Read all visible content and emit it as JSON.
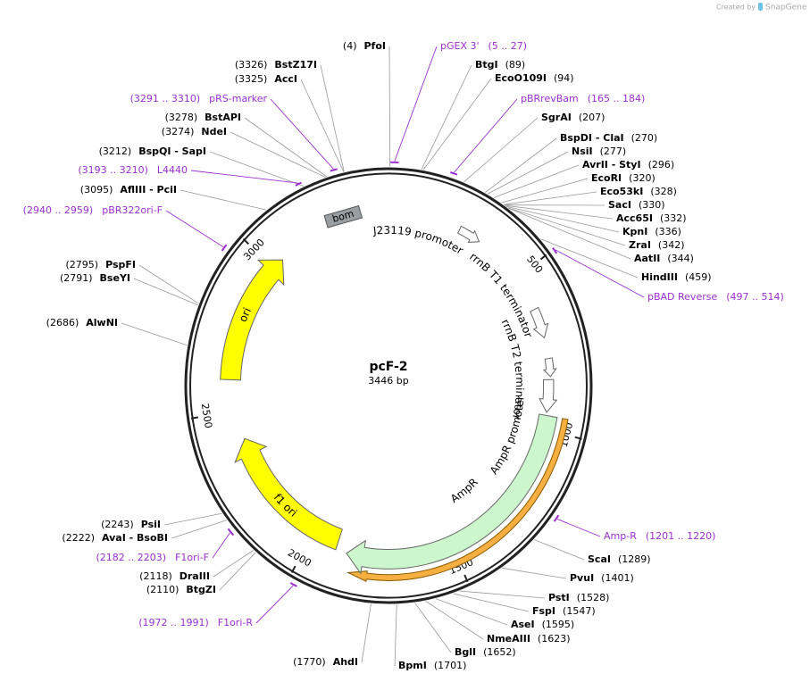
{
  "credit": {
    "prefix": "Created by",
    "brand": "SnapGene"
  },
  "map": {
    "name": "pcF-2",
    "length": 3446,
    "length_label": "3446 bp",
    "ticks": [
      500,
      1000,
      1500,
      2000,
      2500,
      3000
    ]
  },
  "enzymes": [
    {
      "name": "PfoI",
      "site": 4,
      "label": "(4)"
    },
    {
      "name": "BtgI",
      "site": 89,
      "label": "(89)"
    },
    {
      "name": "EcoO109I",
      "site": 94,
      "label": "(94)"
    },
    {
      "name": "SgrAI",
      "site": 207,
      "label": "(207)"
    },
    {
      "name": "BspDI - ClaI",
      "site": 270,
      "label": "(270)"
    },
    {
      "name": "NsiI",
      "site": 277,
      "label": "(277)"
    },
    {
      "name": "AvrII - StyI",
      "site": 296,
      "label": "(296)"
    },
    {
      "name": "EcoRI",
      "site": 320,
      "label": "(320)"
    },
    {
      "name": "Eco53kI",
      "site": 328,
      "label": "(328)"
    },
    {
      "name": "SacI",
      "site": 330,
      "label": "(330)"
    },
    {
      "name": "Acc65I",
      "site": 332,
      "label": "(332)"
    },
    {
      "name": "KpnI",
      "site": 336,
      "label": "(336)"
    },
    {
      "name": "ZraI",
      "site": 342,
      "label": "(342)"
    },
    {
      "name": "AatII",
      "site": 344,
      "label": "(344)"
    },
    {
      "name": "HindIII",
      "site": 459,
      "label": "(459)"
    },
    {
      "name": "ScaI",
      "site": 1289,
      "label": "(1289)"
    },
    {
      "name": "PvuI",
      "site": 1401,
      "label": "(1401)"
    },
    {
      "name": "PstI",
      "site": 1528,
      "label": "(1528)"
    },
    {
      "name": "FspI",
      "site": 1547,
      "label": "(1547)"
    },
    {
      "name": "AseI",
      "site": 1595,
      "label": "(1595)"
    },
    {
      "name": "NmeAIII",
      "site": 1623,
      "label": "(1623)"
    },
    {
      "name": "BglI",
      "site": 1652,
      "label": "(1652)"
    },
    {
      "name": "BpmI",
      "site": 1701,
      "label": "(1701)"
    },
    {
      "name": "AhdI",
      "site": 1770,
      "label": "(1770)"
    },
    {
      "name": "BtgZI",
      "site": 2110,
      "label": "(2110)"
    },
    {
      "name": "DraIII",
      "site": 2118,
      "label": "(2118)"
    },
    {
      "name": "AvaI - BsoBI",
      "site": 2222,
      "label": "(2222)"
    },
    {
      "name": "PsiI",
      "site": 2243,
      "label": "(2243)"
    },
    {
      "name": "AlwNI",
      "site": 2686,
      "label": "(2686)"
    },
    {
      "name": "BseYI",
      "site": 2791,
      "label": "(2791)"
    },
    {
      "name": "PspFI",
      "site": 2795,
      "label": "(2795)"
    },
    {
      "name": "AflIII - PciI",
      "site": 3095,
      "label": "(3095)"
    },
    {
      "name": "BspQI - SapI",
      "site": 3212,
      "label": "(3212)"
    },
    {
      "name": "NdeI",
      "site": 3274,
      "label": "(3274)"
    },
    {
      "name": "BstAPI",
      "site": 3278,
      "label": "(3278)"
    },
    {
      "name": "AccI",
      "site": 3325,
      "label": "(3325)"
    },
    {
      "name": "BstZ17I",
      "site": 3326,
      "label": "(3326)"
    }
  ],
  "primers": [
    {
      "name": "pGEX 3'",
      "start": 5,
      "end": 27,
      "label": "(5 .. 27)"
    },
    {
      "name": "pBRrevBam",
      "start": 165,
      "end": 184,
      "label": "(165 .. 184)"
    },
    {
      "name": "pBAD Reverse",
      "start": 497,
      "end": 514,
      "label": "(497 .. 514)"
    },
    {
      "name": "Amp-R",
      "start": 1201,
      "end": 1220,
      "label": "(1201 .. 1220)"
    },
    {
      "name": "F1ori-R",
      "start": 1972,
      "end": 1991,
      "label": "(1972 .. 1991)"
    },
    {
      "name": "F1ori-F",
      "start": 2182,
      "end": 2203,
      "label": "(2182 .. 2203)"
    },
    {
      "name": "pBR322ori-F",
      "start": 2940,
      "end": 2959,
      "label": "(2940 .. 2959)"
    },
    {
      "name": "L4440",
      "start": 3193,
      "end": 3210,
      "label": "(3193 .. 3210)"
    },
    {
      "name": "pRS-marker",
      "start": 3291,
      "end": 3310,
      "label": "(3291 .. 3310)"
    }
  ],
  "features": [
    {
      "name": "bom"
    },
    {
      "name": "J23119 promoter"
    },
    {
      "name": "rrnB T1 terminator"
    },
    {
      "name": "rrnB T2 terminator"
    },
    {
      "name": "AmpR promoter"
    },
    {
      "name": "AmpR"
    },
    {
      "name": "ori"
    },
    {
      "name": "f1 ori"
    }
  ]
}
